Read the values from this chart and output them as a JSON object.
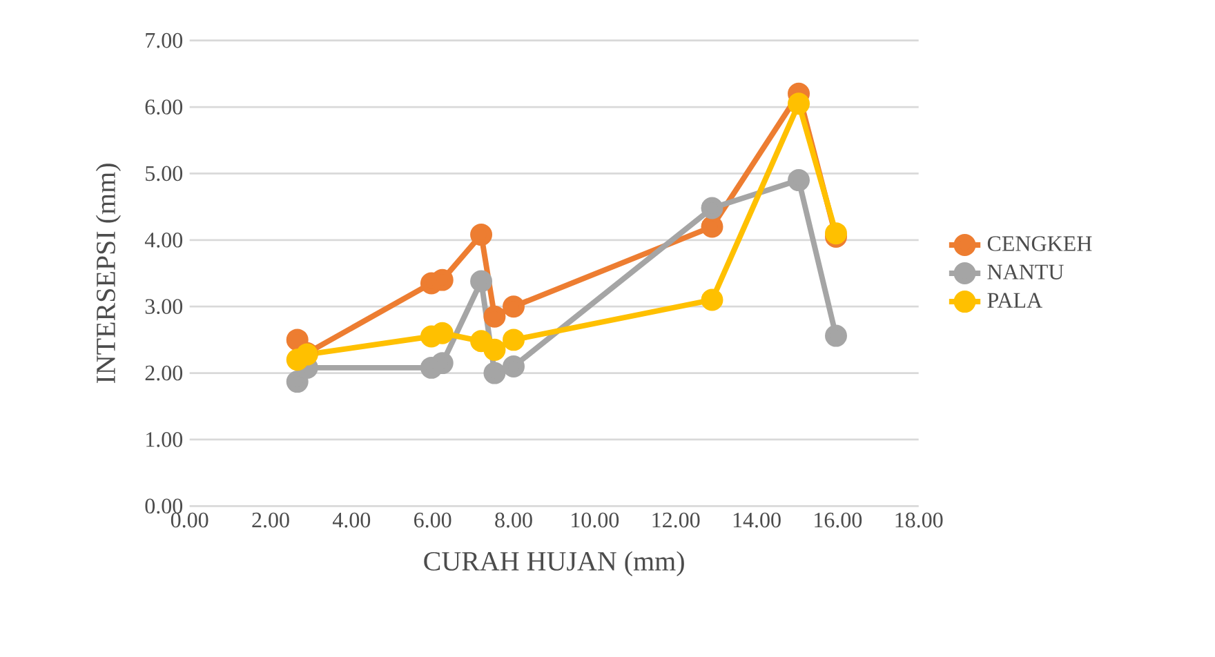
{
  "chart_data": {
    "type": "line",
    "xlabel": "CURAH HUJAN (mm)",
    "ylabel": "INTERSEPSI (mm)",
    "x": [
      2.66,
      2.9,
      5.97,
      6.24,
      7.2,
      7.53,
      8.0,
      12.9,
      15.04,
      15.96
    ],
    "series": [
      {
        "name": "CENGKEH",
        "color": "#ed7d31",
        "values": [
          2.5,
          2.3,
          3.35,
          3.4,
          4.08,
          2.85,
          3.0,
          4.2,
          6.2,
          4.05
        ]
      },
      {
        "name": "NANTU",
        "color": "#a5a5a5",
        "values": [
          1.87,
          2.08,
          2.08,
          2.15,
          3.38,
          2.0,
          2.1,
          4.48,
          4.9,
          2.56
        ]
      },
      {
        "name": "PALA",
        "color": "#ffc000",
        "values": [
          2.2,
          2.28,
          2.55,
          2.6,
          2.48,
          2.35,
          2.5,
          3.1,
          6.05,
          4.1
        ]
      }
    ],
    "xlim": [
      0,
      18
    ],
    "xticks": [
      {
        "value": 0,
        "label": "0.00"
      },
      {
        "value": 2,
        "label": "2.00"
      },
      {
        "value": 4,
        "label": "4.00"
      },
      {
        "value": 6,
        "label": "6.00"
      },
      {
        "value": 8,
        "label": "8.00"
      },
      {
        "value": 10,
        "label": "10.00"
      },
      {
        "value": 12,
        "label": "12.00"
      },
      {
        "value": 14,
        "label": "14.00"
      },
      {
        "value": 16,
        "label": "16.00"
      },
      {
        "value": 18,
        "label": "18.00"
      }
    ],
    "ylim": [
      0,
      7
    ],
    "yticks": [
      {
        "value": 0,
        "label": "0.00"
      },
      {
        "value": 1,
        "label": "1.00"
      },
      {
        "value": 2,
        "label": "2.00"
      },
      {
        "value": 3,
        "label": "3.00"
      },
      {
        "value": 4,
        "label": "4.00"
      },
      {
        "value": 5,
        "label": "5.00"
      },
      {
        "value": 6,
        "label": "6.00"
      },
      {
        "value": 7,
        "label": "7.00"
      }
    ],
    "grid": "y",
    "legend": "right",
    "marker": "circle",
    "line_style": "solid"
  }
}
